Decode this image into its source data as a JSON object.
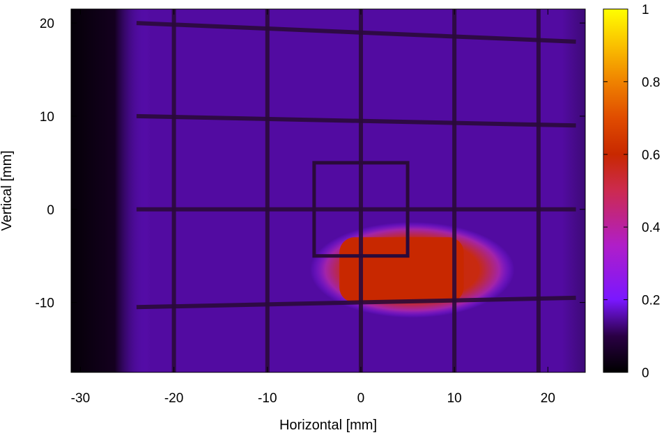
{
  "chart_data": {
    "type": "heatmap",
    "xlabel": "Horizontal [mm]",
    "ylabel": "Vertical [mm]",
    "xlim": [
      -31,
      24
    ],
    "ylim": [
      -17.5,
      21.5
    ],
    "x_ticks": [
      -30,
      -20,
      -10,
      0,
      10,
      20
    ],
    "y_ticks": [
      -10,
      0,
      10,
      20
    ],
    "colorbar": {
      "range": [
        0,
        1
      ],
      "ticks": [
        0,
        0.2,
        0.4,
        0.6,
        0.8,
        1
      ],
      "tick_labels": [
        "0",
        "0.2",
        "0.4",
        "0.6",
        "0.8",
        "1"
      ],
      "palette": [
        [
          0.0,
          "#000000"
        ],
        [
          0.1,
          "#2a0044"
        ],
        [
          0.2,
          "#7a17ff"
        ],
        [
          0.35,
          "#b01ec8"
        ],
        [
          0.5,
          "#cc2a50"
        ],
        [
          0.6,
          "#c82800"
        ],
        [
          0.7,
          "#e04c00"
        ],
        [
          0.8,
          "#ef8200"
        ],
        [
          0.9,
          "#fac000"
        ],
        [
          1.0,
          "#ffff00"
        ]
      ]
    },
    "background_level": 0.15,
    "dark_region": {
      "x": [
        -31,
        -24
      ],
      "level": 0.02
    },
    "hot_spot": {
      "center": [
        5,
        -6.5
      ],
      "x_extent": [
        -3.5,
        14.5
      ],
      "y_extent": [
        -10,
        -3
      ],
      "peak_level": 0.6
    },
    "grid_wire_x": [
      -20,
      -10,
      0,
      10,
      19
    ],
    "grid_wire_y": [
      {
        "x": [
          -24,
          23
        ],
        "y": [
          20,
          18
        ]
      },
      {
        "x": [
          -24,
          23
        ],
        "y": [
          10,
          9
        ]
      },
      {
        "x": [
          -24,
          23
        ],
        "y": [
          0,
          0
        ]
      },
      {
        "x": [
          -24,
          23
        ],
        "y": [
          -10.5,
          -9.5
        ]
      }
    ],
    "frame_box": {
      "x": [
        -5,
        5
      ],
      "y": [
        -5,
        5
      ]
    }
  }
}
